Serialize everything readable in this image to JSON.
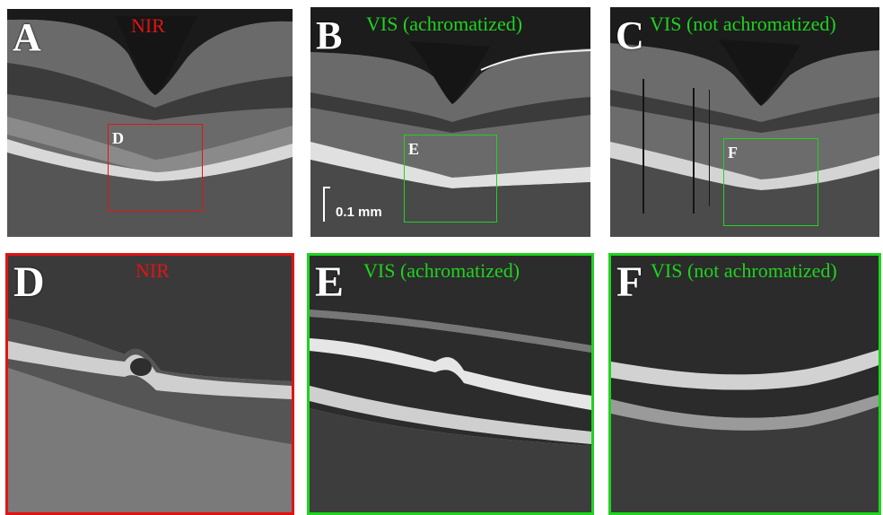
{
  "colors": {
    "nir": "#e01414",
    "vis": "#1fd31f",
    "background": "#ffffff"
  },
  "panels": {
    "a": {
      "letter": "A",
      "title": "NIR"
    },
    "b": {
      "letter": "B",
      "title": "VIS (achromatized)",
      "scale_label": "0.1 mm"
    },
    "c": {
      "letter": "C",
      "title": "VIS (not achromatized)"
    },
    "d": {
      "letter": "D",
      "title": "NIR"
    },
    "e": {
      "letter": "E",
      "title": "VIS (achromatized)"
    },
    "f": {
      "letter": "F",
      "title": "VIS (not achromatized)"
    }
  },
  "roi_labels": {
    "d": "D",
    "e": "E",
    "f": "F"
  }
}
